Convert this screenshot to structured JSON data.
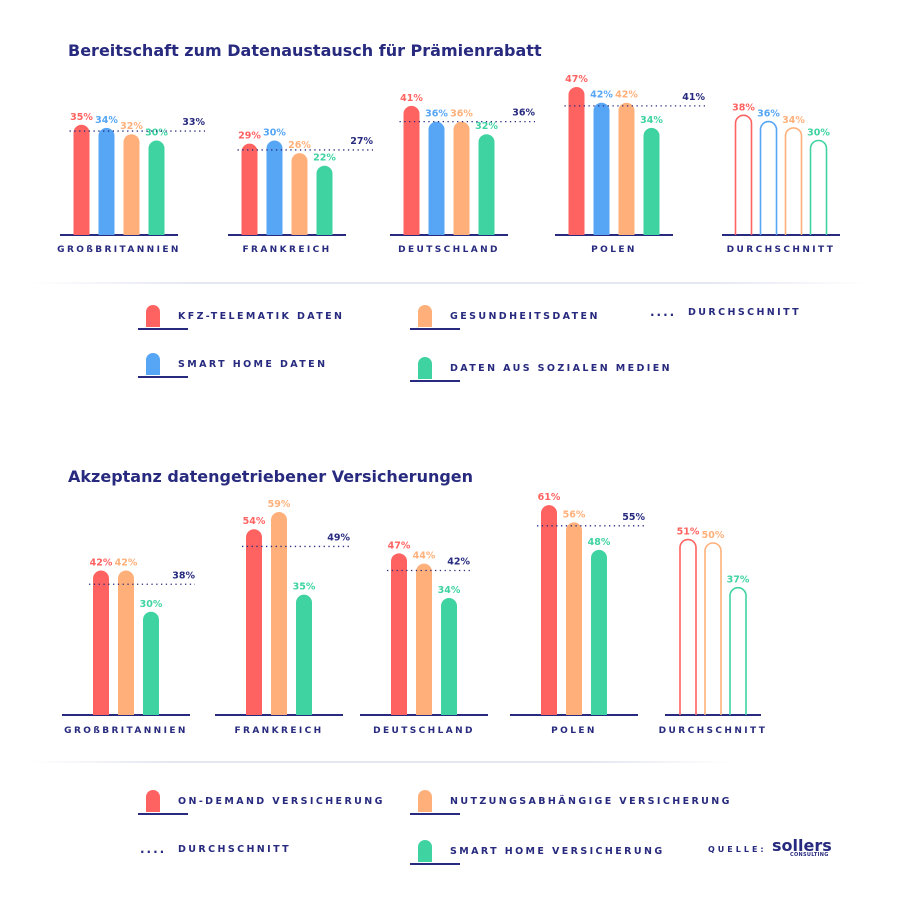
{
  "colors": {
    "kfz": "#ff6361",
    "smart": "#56a6f5",
    "gesund": "#ffb07a",
    "sozial": "#3fd3a2",
    "navy": "#272a7e"
  },
  "chart_data": [
    {
      "type": "bar",
      "title": "Bereitschaft zum Datenaustausch für Prämienrabatt",
      "categories": [
        "GROßBRITANNIEN",
        "FRANKREICH",
        "DEUTSCHLAND",
        "POLEN",
        "DURCHSCHNITT"
      ],
      "series": [
        {
          "name": "KFZ-TELEMATIK DATEN",
          "values": [
            35,
            29,
            41,
            47,
            38
          ]
        },
        {
          "name": "SMART HOME DATEN",
          "values": [
            34,
            30,
            36,
            42,
            36
          ]
        },
        {
          "name": "GESUNDHEITSDATEN",
          "values": [
            32,
            26,
            36,
            42,
            34
          ]
        },
        {
          "name": "DATEN AUS SOZIALEN MEDIEN",
          "values": [
            30,
            22,
            32,
            34,
            30
          ]
        }
      ],
      "average": {
        "name": "DURCHSCHNITT",
        "values": [
          33,
          27,
          36,
          41,
          null
        ]
      },
      "unit": "%",
      "legend": "bottom"
    },
    {
      "type": "bar",
      "title": "Akzeptanz datengetriebener Versicherungen",
      "categories": [
        "GROßBRITANNIEN",
        "FRANKREICH",
        "DEUTSCHLAND",
        "POLEN",
        "DURCHSCHNITT"
      ],
      "series": [
        {
          "name": "ON-DEMAND VERSICHERUNG",
          "values": [
            42,
            54,
            47,
            61,
            51
          ]
        },
        {
          "name": "NUTZUNGSABHÄNGIGE VERSICHERUNG",
          "values": [
            42,
            59,
            44,
            56,
            50
          ]
        },
        {
          "name": "SMART HOME VERSICHERUNG",
          "values": [
            30,
            35,
            34,
            48,
            37
          ]
        }
      ],
      "average": {
        "name": "DURCHSCHNITT",
        "values": [
          38,
          49,
          42,
          55,
          null
        ]
      },
      "unit": "%",
      "legend": "bottom"
    }
  ],
  "legend1": {
    "dots": "....",
    "avg": "DURCHSCHNITT"
  },
  "legend2": {
    "dots": "....",
    "avg": "DURCHSCHNITT"
  },
  "source": {
    "label": "QUELLE:",
    "logo": "sollers",
    "logo_sub": "CONSULTING"
  }
}
